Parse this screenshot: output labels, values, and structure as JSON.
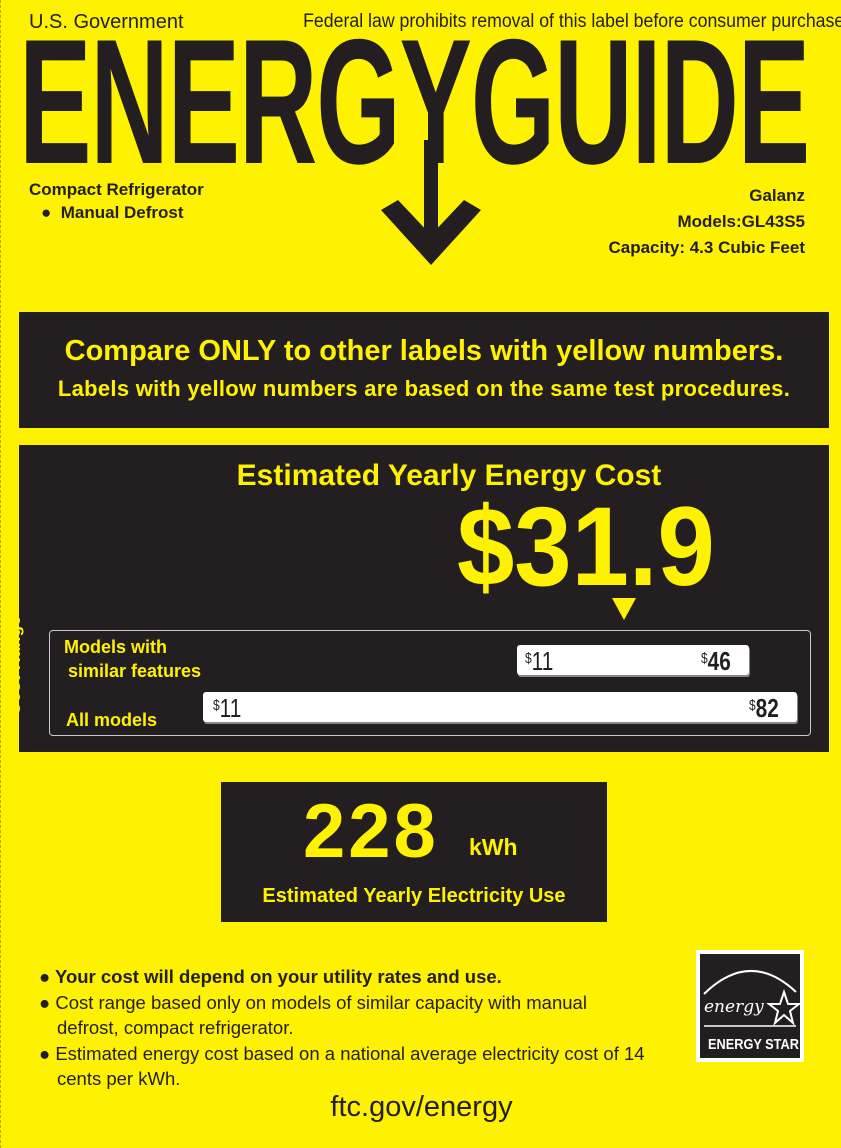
{
  "header": {
    "government": "U.S. Government",
    "notice": "Federal law prohibits removal of this label before consumer purchase.",
    "title": "ENERGYGUIDE"
  },
  "product": {
    "type": "Compact Refrigerator",
    "feature": "Manual Defrost",
    "brand": "Galanz",
    "models": "Models:GL43S5",
    "capacity": "Capacity: 4.3 Cubic Feet"
  },
  "compare": {
    "line1": "Compare ONLY to other labels with yellow numbers.",
    "line2": "Labels with yellow numbers are based on the same test procedures."
  },
  "cost": {
    "heading": "Estimated Yearly Energy Cost",
    "value": "$31.9",
    "range_label": "Cost Range",
    "similar_label_1": "Models with",
    "similar_label_2": "similar features",
    "similar_min": "11",
    "similar_max": "46",
    "all_label": "All models",
    "all_min": "11",
    "all_max": "82",
    "currency": "$"
  },
  "electricity": {
    "value": "228",
    "unit": "kWh",
    "label": "Estimated Yearly Electricity Use"
  },
  "notes": [
    "Your cost will depend on your utility rates and use.",
    "Cost range based only on models of similar capacity with manual defrost, compact refrigerator.",
    "Estimated energy cost based on a national average electricity cost of 14 cents per kWh."
  ],
  "footer": {
    "url": "ftc.gov/energy"
  },
  "logo": {
    "script": "energy",
    "name": "ENERGY STAR"
  },
  "colors": {
    "label_yellow": "#fff200",
    "dark": "#231f20"
  }
}
